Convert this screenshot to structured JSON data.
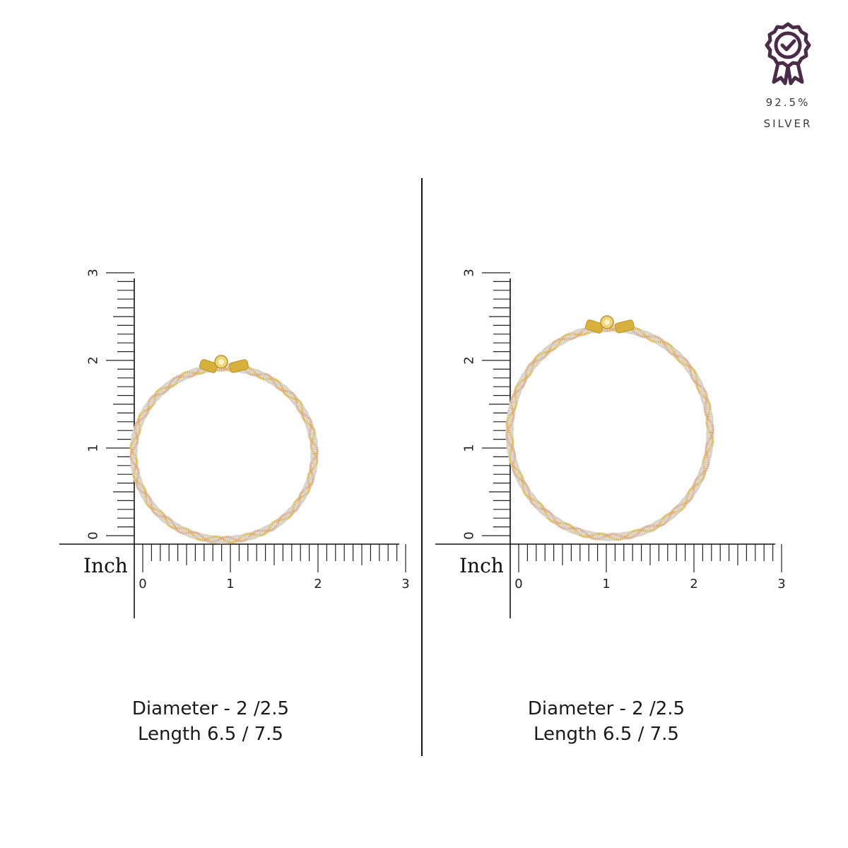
{
  "badge": {
    "icon": "award-rosette-check-icon",
    "color": "#4a2c48",
    "purity": "92.5%",
    "metal": "SILVER"
  },
  "ruler": {
    "unit_label": "Inch",
    "ticks": [
      "0",
      "1",
      "2",
      "3"
    ]
  },
  "panels": [
    {
      "caption_line1": "Diameter - 2 /2.5",
      "caption_line2": "Length 6.5 / 7.5"
    },
    {
      "caption_line1": "Diameter - 2 /2.5",
      "caption_line2": "Length 6.5 / 7.5"
    }
  ],
  "colors": {
    "gold": "#d9b54a",
    "rose": "#d9a48c",
    "silver": "#cfcfcf"
  }
}
